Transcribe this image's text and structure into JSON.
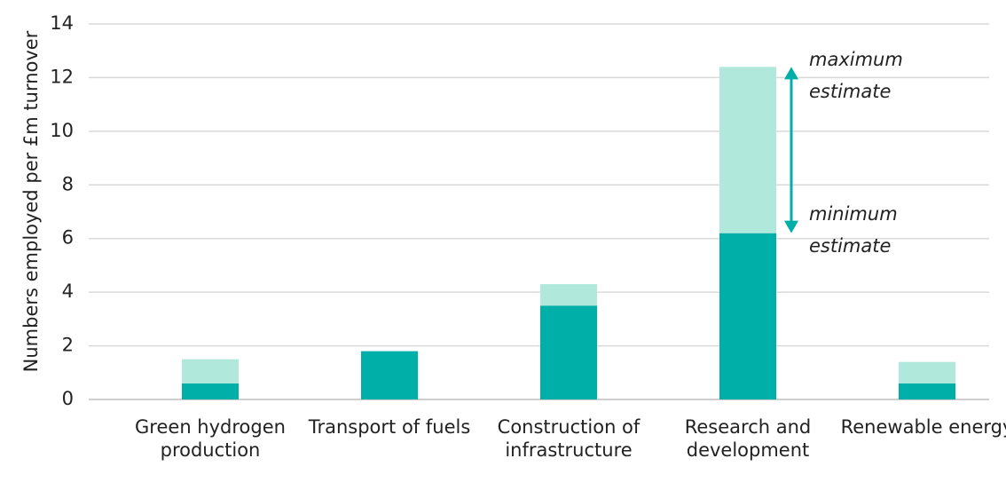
{
  "chart_data": {
    "type": "stacked_bar",
    "y_label": "Numbers employed per £m turnover",
    "categories": [
      "Green hydrogen production",
      "Transport of fuels",
      "Construction of infrastructure",
      "Research and development",
      "Renewable energy"
    ],
    "series": [
      {
        "color": "#00b0a8",
        "values": [
          0.6,
          1.8,
          3.5,
          6.2,
          0.6
        ]
      },
      {
        "color": "#b0e8dc",
        "values": [
          0.9,
          0,
          0.8,
          6.2,
          0.8
        ]
      }
    ],
    "annotations": [
      "maximum estimate",
      "minimum estimate"
    ],
    "ylim": [
      0,
      14
    ],
    "yticks": [
      0,
      2,
      4,
      6,
      8,
      10,
      12,
      14
    ],
    "grid": true
  }
}
